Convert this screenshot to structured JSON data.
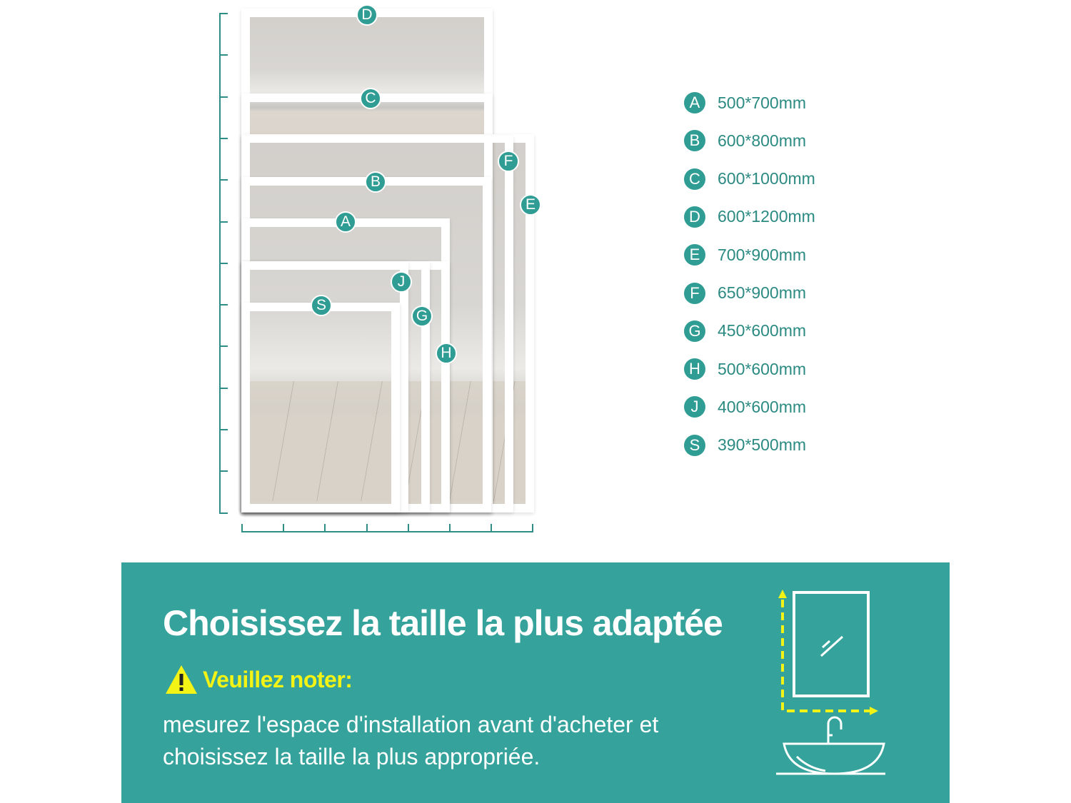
{
  "diagram": {
    "labels": [
      "D",
      "C",
      "F",
      "E",
      "B",
      "A",
      "J",
      "G",
      "H",
      "S"
    ]
  },
  "legend": [
    {
      "letter": "A",
      "size": "500*700mm"
    },
    {
      "letter": "B",
      "size": "600*800mm"
    },
    {
      "letter": "C",
      "size": "600*1000mm"
    },
    {
      "letter": "D",
      "size": "600*1200mm"
    },
    {
      "letter": "E",
      "size": "700*900mm"
    },
    {
      "letter": "F",
      "size": "650*900mm"
    },
    {
      "letter": "G",
      "size": "450*600mm"
    },
    {
      "letter": "H",
      "size": "500*600mm"
    },
    {
      "letter": "J",
      "size": "400*600mm"
    },
    {
      "letter": "S",
      "size": "390*500mm"
    }
  ],
  "banner": {
    "title": "Choisissez la taille la plus adaptée",
    "note_label": "Veuillez noter:",
    "description": "mesurez l'espace d'installation avant d'acheter et choisissez la taille la plus appropriée.",
    "icon": "mirror-above-sink-measure-icon",
    "warning_icon": "warning-triangle-icon"
  },
  "colors": {
    "accent": "#35a39b",
    "highlight": "#f3f315"
  }
}
